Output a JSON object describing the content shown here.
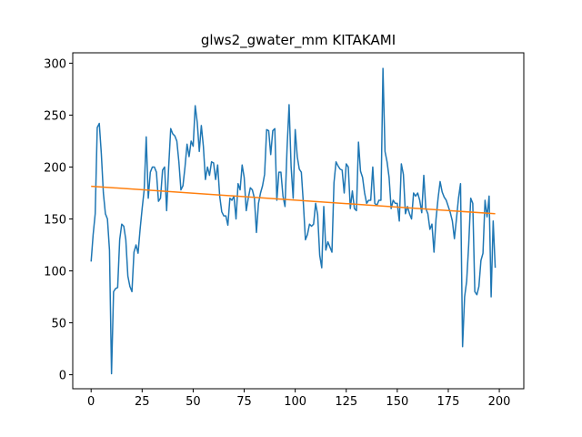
{
  "chart_data": {
    "type": "line",
    "title": "glws2_gwater_mm KITAKAMI",
    "xlabel": "",
    "ylabel": "",
    "xlim": [
      -9,
      212
    ],
    "ylim": [
      -13.5,
      310
    ],
    "x_ticks": [
      0,
      25,
      50,
      75,
      100,
      125,
      150,
      175,
      200
    ],
    "y_ticks": [
      0,
      50,
      100,
      150,
      200,
      250,
      300
    ],
    "grid": false,
    "series": [
      {
        "color": "#1f77b4",
        "values": [
          109,
          135,
          155,
          238,
          242,
          213,
          175,
          155,
          150,
          120,
          1,
          80,
          83,
          84,
          130,
          145,
          143,
          130,
          95,
          85,
          80,
          118,
          125,
          117,
          140,
          160,
          178,
          229,
          170,
          195,
          200,
          200,
          195,
          167,
          170,
          197,
          200,
          158,
          200,
          237,
          232,
          230,
          225,
          205,
          178,
          182,
          200,
          222,
          210,
          225,
          220,
          259,
          243,
          215,
          240,
          220,
          188,
          200,
          192,
          205,
          204,
          188,
          202,
          172,
          157,
          153,
          153,
          144,
          170,
          168,
          172,
          150,
          184,
          178,
          202,
          190,
          158,
          170,
          180,
          178,
          170,
          137,
          165,
          175,
          182,
          193,
          236,
          235,
          212,
          235,
          237,
          168,
          195,
          195,
          172,
          162,
          218,
          260,
          200,
          170,
          236,
          210,
          198,
          195,
          165,
          130,
          135,
          145,
          143,
          145,
          165,
          154,
          115,
          103,
          162,
          120,
          128,
          123,
          118,
          185,
          205,
          201,
          198,
          197,
          175,
          203,
          200,
          160,
          177,
          160,
          158,
          224,
          196,
          190,
          175,
          165,
          168,
          168,
          200,
          165,
          163,
          168,
          168,
          295,
          215,
          205,
          190,
          160,
          168,
          165,
          165,
          148,
          203,
          193,
          155,
          162,
          155,
          150,
          175,
          172,
          175,
          168,
          156,
          192,
          160,
          155,
          140,
          145,
          118,
          150,
          170,
          186,
          176,
          171,
          168,
          162,
          156,
          148,
          131,
          150,
          170,
          184,
          27,
          75,
          90,
          125,
          170,
          165,
          80,
          77,
          85,
          110,
          117,
          168,
          152,
          172,
          75,
          148,
          103
        ]
      },
      {
        "color": "#ff7f0e",
        "trend": [
          181.5,
          155.0
        ]
      }
    ]
  }
}
